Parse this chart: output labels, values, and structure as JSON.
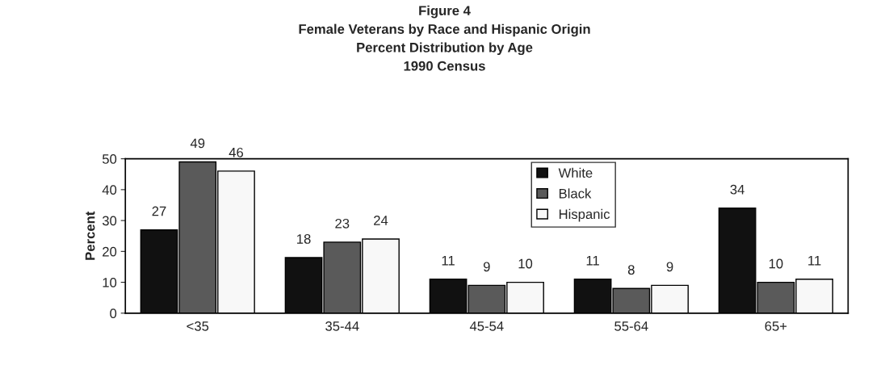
{
  "chart_data": {
    "type": "bar",
    "title": "Figure 4\nFemale Veterans by Race and Hispanic Origin\nPercent Distribution by Age\n1990 Census",
    "ylabel": "Percent",
    "categories": [
      "<35",
      "35-44",
      "45-54",
      "55-64",
      "65+"
    ],
    "series": [
      {
        "name": "White",
        "color": "#111111",
        "values": [
          27,
          18,
          11,
          11,
          34
        ]
      },
      {
        "name": "Black",
        "color": "#5a5a5a",
        "values": [
          49,
          23,
          9,
          8,
          10
        ]
      },
      {
        "name": "Hispanic",
        "color": "#f8f8f8",
        "values": [
          46,
          24,
          10,
          9,
          11
        ]
      }
    ],
    "ylim": [
      0,
      50
    ],
    "yticks": [
      0,
      10,
      20,
      30,
      40,
      50
    ],
    "grid": false,
    "legend": "top",
    "data_labels": true
  }
}
